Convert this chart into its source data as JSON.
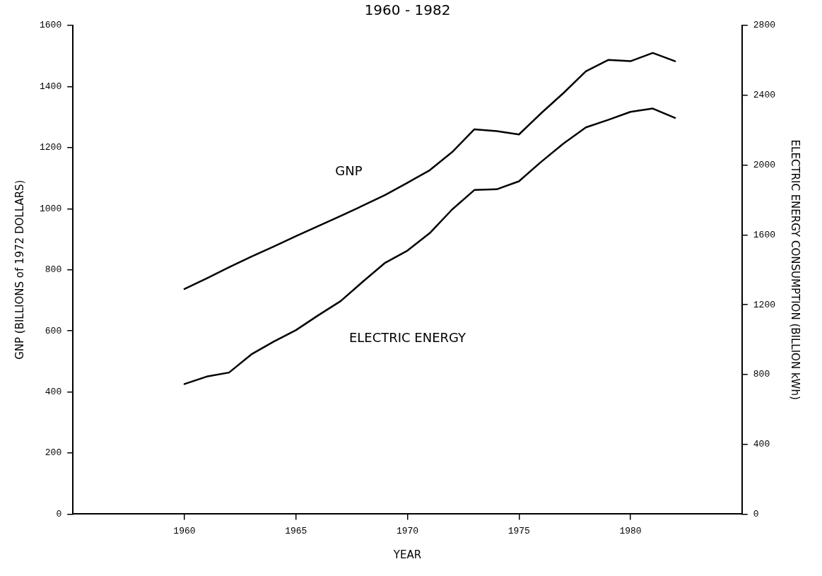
{
  "chart_data": {
    "type": "line",
    "title": "1960 - 1982",
    "xlabel": "YEAR",
    "ylabel": "GNP (BILLIONS of 1972 DOLLARS)",
    "y2label": "ELECTRIC ENERGY CONSUMPTION (BILLION kWh)",
    "x": [
      1960,
      1961,
      1962,
      1963,
      1964,
      1965,
      1966,
      1967,
      1968,
      1969,
      1970,
      1971,
      1972,
      1973,
      1974,
      1975,
      1976,
      1977,
      1978,
      1979,
      1980,
      1981,
      1982
    ],
    "series": [
      {
        "name": "GNP",
        "color": "#000000",
        "values": [
          737,
          772,
          808,
          843,
          876,
          910,
          943,
          976,
          1010,
          1045,
          1085,
          1126,
          1185,
          1260,
          1254,
          1243,
          1313,
          1379,
          1450,
          1487,
          1483,
          1510,
          1483
        ]
      },
      {
        "name": "ELECTRIC ENERGY",
        "color": "#000000",
        "axis": "y2",
        "values": [
          745,
          788,
          811,
          915,
          988,
          1054,
          1139,
          1220,
          1332,
          1440,
          1510,
          1610,
          1745,
          1857,
          1861,
          1907,
          2019,
          2124,
          2216,
          2259,
          2305,
          2324,
          2270
        ]
      }
    ],
    "xlim": [
      1955,
      1985
    ],
    "xticks": [
      1960,
      1965,
      1970,
      1975,
      1980
    ],
    "ylim": [
      0,
      1600
    ],
    "yticks": [
      0,
      200,
      400,
      600,
      800,
      1000,
      1200,
      1400,
      1600
    ],
    "y2lim": [
      0,
      2800
    ],
    "y2ticks": [
      0,
      400,
      800,
      1200,
      1600,
      2000,
      2400,
      2800
    ],
    "grid": false,
    "legend": false,
    "marker": "none",
    "line_style": "solid"
  }
}
